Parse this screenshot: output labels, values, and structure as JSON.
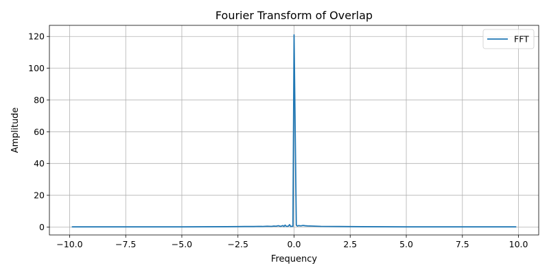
{
  "chart_data": {
    "type": "line",
    "title": "Fourier Transform of Overlap",
    "xlabel": "Frequency",
    "ylabel": "Amplitude",
    "xlim": [
      -10.9,
      10.9
    ],
    "ylim": [
      -5,
      127
    ],
    "xticks": [
      -10.0,
      -7.5,
      -5.0,
      -2.5,
      0.0,
      2.5,
      5.0,
      7.5,
      10.0
    ],
    "xtick_labels": [
      "−10.0",
      "−7.5",
      "−5.0",
      "−2.5",
      "0.0",
      "2.5",
      "5.0",
      "7.5",
      "10.0"
    ],
    "yticks": [
      0,
      20,
      40,
      60,
      80,
      100,
      120
    ],
    "ytick_labels": [
      "0",
      "20",
      "40",
      "60",
      "80",
      "100",
      "120"
    ],
    "grid": true,
    "legend": {
      "position": "upper right",
      "entries": [
        "FFT"
      ]
    },
    "series": [
      {
        "name": "FFT",
        "color": "#1f77b4",
        "x": [
          -9.9,
          -9.0,
          -8.0,
          -7.0,
          -6.0,
          -5.0,
          -4.0,
          -3.0,
          -2.5,
          -2.2,
          -2.0,
          -1.8,
          -1.6,
          -1.4,
          -1.2,
          -1.0,
          -0.9,
          -0.8,
          -0.7,
          -0.6,
          -0.5,
          -0.45,
          -0.4,
          -0.35,
          -0.3,
          -0.25,
          -0.2,
          -0.15,
          -0.1,
          -0.05,
          0.0,
          0.1,
          0.15,
          0.2,
          0.3,
          0.4,
          0.5,
          0.6,
          0.8,
          1.0,
          1.2,
          1.5,
          2.0,
          2.5,
          3.0,
          4.0,
          5.0,
          6.0,
          7.0,
          8.0,
          9.0,
          9.9
        ],
        "y": [
          0.1,
          0.1,
          0.1,
          0.1,
          0.1,
          0.1,
          0.15,
          0.2,
          0.25,
          0.3,
          0.35,
          0.3,
          0.4,
          0.35,
          0.5,
          0.4,
          0.6,
          0.5,
          0.8,
          0.4,
          0.9,
          0.3,
          1.2,
          0.5,
          0.4,
          0.6,
          1.5,
          0.3,
          0.5,
          0.4,
          121,
          1.2,
          0.6,
          0.9,
          0.7,
          1.0,
          0.8,
          0.7,
          0.6,
          0.5,
          0.4,
          0.35,
          0.3,
          0.25,
          0.2,
          0.15,
          0.1,
          0.1,
          0.1,
          0.1,
          0.1,
          0.1
        ]
      }
    ]
  }
}
